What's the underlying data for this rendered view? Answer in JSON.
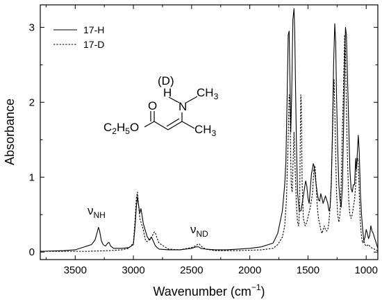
{
  "chart_data": {
    "type": "line",
    "xlabel": "Wavenumber (cm",
    "xlabel_sup": "−1",
    "xlabel_close": ")",
    "ylabel": "Absorbance",
    "xlim": [
      3800,
      900
    ],
    "ylim": [
      -0.1,
      3.3
    ],
    "x_reversed": true,
    "x_ticks": [
      3500,
      3000,
      2500,
      2000,
      1500,
      1000
    ],
    "y_ticks": [
      0,
      1,
      2,
      3
    ],
    "legend_position": "top-left",
    "series": [
      {
        "name": "17-H",
        "style": "solid",
        "color": "#000000",
        "x": [
          3800,
          3600,
          3500,
          3420,
          3360,
          3330,
          3310,
          3300,
          3290,
          3275,
          3260,
          3240,
          3220,
          3210,
          3195,
          3170,
          3100,
          3040,
          3000,
          2985,
          2975,
          2965,
          2955,
          2945,
          2935,
          2925,
          2915,
          2900,
          2880,
          2860,
          2845,
          2830,
          2810,
          2780,
          2700,
          2600,
          2500,
          2460,
          2440,
          2420,
          2380,
          2300,
          2200,
          2100,
          2000,
          1900,
          1800,
          1760,
          1720,
          1700,
          1690,
          1680,
          1670,
          1662,
          1655,
          1648,
          1640,
          1630,
          1620,
          1614,
          1608,
          1600,
          1590,
          1575,
          1560,
          1545,
          1530,
          1520,
          1510,
          1500,
          1490,
          1480,
          1470,
          1460,
          1455,
          1448,
          1440,
          1430,
          1420,
          1410,
          1400,
          1390,
          1380,
          1370,
          1360,
          1350,
          1340,
          1330,
          1320,
          1310,
          1300,
          1290,
          1280,
          1270,
          1262,
          1255,
          1245,
          1235,
          1225,
          1215,
          1205,
          1195,
          1185,
          1178,
          1170,
          1160,
          1150,
          1140,
          1130,
          1120,
          1110,
          1100,
          1090,
          1085,
          1075,
          1068,
          1060,
          1050,
          1040,
          1030,
          1020,
          1010,
          1000,
          990,
          980,
          970,
          960,
          950,
          940,
          920,
          900
        ],
        "y": [
          0.01,
          0.02,
          0.03,
          0.07,
          0.1,
          0.16,
          0.27,
          0.33,
          0.28,
          0.15,
          0.1,
          0.08,
          0.12,
          0.13,
          0.08,
          0.05,
          0.05,
          0.06,
          0.1,
          0.35,
          0.6,
          0.74,
          0.62,
          0.52,
          0.58,
          0.48,
          0.38,
          0.3,
          0.2,
          0.16,
          0.2,
          0.15,
          0.08,
          0.04,
          0.03,
          0.03,
          0.05,
          0.07,
          0.07,
          0.05,
          0.04,
          0.03,
          0.03,
          0.04,
          0.05,
          0.07,
          0.12,
          0.25,
          0.55,
          0.9,
          1.2,
          2.0,
          2.9,
          2.95,
          2.3,
          1.6,
          2.1,
          3.1,
          3.25,
          2.95,
          2.3,
          1.5,
          0.8,
          0.55,
          0.55,
          0.7,
          0.85,
          0.95,
          0.88,
          0.72,
          0.65,
          0.85,
          1.05,
          1.12,
          1.18,
          1.15,
          1.05,
          0.9,
          0.78,
          0.7,
          0.68,
          0.78,
          0.72,
          0.65,
          0.7,
          0.75,
          0.7,
          0.65,
          0.55,
          0.6,
          0.9,
          1.6,
          2.5,
          3.05,
          2.8,
          2.1,
          1.4,
          0.9,
          0.7,
          0.6,
          0.85,
          1.6,
          2.5,
          3.0,
          2.9,
          2.3,
          1.7,
          1.1,
          0.85,
          0.8,
          0.9,
          0.9,
          1.25,
          1.1,
          1.35,
          1.56,
          1.35,
          0.8,
          0.5,
          0.3,
          0.15,
          0.2,
          0.3,
          0.25,
          0.18,
          0.22,
          0.35,
          0.28,
          0.25,
          0.15,
          0.05
        ]
      },
      {
        "name": "17-D",
        "style": "dashed",
        "color": "#000000",
        "x": [
          3800,
          3600,
          3400,
          3200,
          3100,
          3040,
          3000,
          2985,
          2975,
          2965,
          2955,
          2945,
          2935,
          2925,
          2915,
          2905,
          2895,
          2880,
          2860,
          2845,
          2830,
          2820,
          2810,
          2800,
          2780,
          2700,
          2600,
          2500,
          2470,
          2450,
          2435,
          2425,
          2410,
          2380,
          2300,
          2100,
          1900,
          1800,
          1760,
          1720,
          1700,
          1685,
          1672,
          1662,
          1656,
          1650,
          1644,
          1636,
          1628,
          1620,
          1612,
          1600,
          1590,
          1580,
          1572,
          1566,
          1562,
          1558,
          1550,
          1540,
          1525,
          1510,
          1495,
          1480,
          1470,
          1460,
          1450,
          1440,
          1430,
          1420,
          1410,
          1400,
          1390,
          1380,
          1370,
          1360,
          1350,
          1340,
          1330,
          1320,
          1310,
          1300,
          1290,
          1282,
          1276,
          1270,
          1262,
          1255,
          1245,
          1235,
          1225,
          1215,
          1205,
          1195,
          1185,
          1178,
          1170,
          1160,
          1150,
          1140,
          1130,
          1120,
          1110,
          1100,
          1090,
          1080,
          1072,
          1065,
          1058,
          1050,
          1040,
          1030,
          1020,
          1010,
          1000,
          980,
          960,
          940,
          920,
          900
        ],
        "y": [
          0.01,
          0.01,
          0.01,
          0.02,
          0.03,
          0.05,
          0.12,
          0.45,
          0.72,
          0.8,
          0.62,
          0.45,
          0.4,
          0.35,
          0.3,
          0.22,
          0.15,
          0.14,
          0.18,
          0.2,
          0.24,
          0.27,
          0.25,
          0.2,
          0.12,
          0.04,
          0.03,
          0.06,
          0.08,
          0.1,
          0.11,
          0.09,
          0.07,
          0.04,
          0.02,
          0.02,
          0.03,
          0.05,
          0.1,
          0.2,
          0.35,
          0.7,
          1.4,
          2.1,
          2.05,
          1.4,
          0.9,
          0.8,
          1.2,
          1.6,
          1.2,
          0.65,
          0.4,
          0.35,
          0.6,
          1.5,
          2.1,
          2.0,
          0.9,
          0.45,
          0.35,
          0.4,
          0.5,
          0.6,
          0.7,
          0.8,
          1.1,
          1.15,
          0.9,
          0.6,
          0.45,
          0.38,
          0.3,
          0.25,
          0.3,
          0.35,
          0.3,
          0.28,
          0.3,
          0.4,
          0.6,
          0.95,
          1.5,
          2.1,
          2.3,
          1.9,
          1.3,
          0.8,
          0.5,
          0.4,
          0.5,
          0.9,
          1.6,
          2.2,
          2.9,
          2.7,
          1.9,
          1.2,
          0.7,
          0.5,
          0.45,
          0.5,
          0.6,
          0.7,
          0.9,
          1.2,
          1.25,
          1.05,
          0.7,
          0.4,
          0.2,
          0.12,
          0.15,
          0.1,
          0.08,
          0.1,
          0.06,
          0.05,
          0.03,
          0.02
        ]
      }
    ],
    "annotations": [
      {
        "main": "ν",
        "sub": "NH",
        "x": 3290,
        "y": 0.43
      },
      {
        "main": "ν",
        "sub": "ND",
        "x": 2440,
        "y": 0.16
      }
    ],
    "molecule": {
      "d_label": "(D)",
      "h": "H",
      "n": "N",
      "ch3_top": "CH",
      "ch3_top_sub": "3",
      "o_top": "O",
      "ester_c": "C",
      "ester_c_sub": "2",
      "ester_h": "H",
      "ester_h_sub": "5",
      "ester_o": "O",
      "ch3_right": "CH",
      "ch3_right_sub": "3"
    }
  }
}
